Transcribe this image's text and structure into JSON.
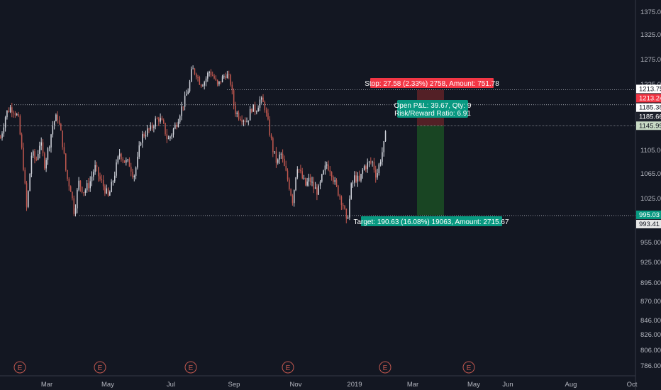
{
  "colors": {
    "background": "#131722",
    "up": "#d1d4dc",
    "down": "#c2584f",
    "axis_text": "#b2b5be",
    "stop_zone": "#5b2127",
    "target_zone": "#1b4a23",
    "stop_label": "#f23645",
    "target_label": "#089981",
    "info_label": "#089981",
    "current_price_bg": "#d1d4dc",
    "stop_price_bg": "#f23645",
    "target_price_bg": "#089981"
  },
  "chart_data": {
    "type": "candlestick",
    "title": "",
    "xlabel": "",
    "ylabel": "",
    "y_axis_ticks": [
      "1375.00",
      "1325.00",
      "1275.00",
      "1225.00",
      "1185.00",
      "1145.00",
      "1105.00",
      "1065.00",
      "1025.00",
      "995.00",
      "955.00",
      "925.00",
      "895.00",
      "870.00",
      "846.00",
      "826.00",
      "806.00",
      "786.00"
    ],
    "x_axis_ticks": [
      "Mar",
      "May",
      "Jul",
      "Sep",
      "Nov",
      "2019",
      "Mar",
      "May",
      "Jun",
      "Aug",
      "Oct"
    ],
    "price_labels": {
      "stop": "1213.75",
      "stop_alt": "1213.24",
      "info_line": "1185.38",
      "current": "1185.66",
      "entry": "1145.99",
      "target": "995.03",
      "target_alt": "993.41"
    },
    "position": {
      "entry": 1145.99,
      "stop": 1213.75,
      "target": 995.03,
      "stop_text": "Stop: 27.58 (2.33%) 2758, Amount: 751.78",
      "target_text": "Target: 190.63 (16.08%) 19063, Amount: 2715.67",
      "pnl_text": "Open P&L: 39.67, Qty: 9",
      "rr_text": "Risk/Reward Ratio: 6.91"
    },
    "earnings_markers": [
      "E",
      "E",
      "E",
      "E",
      "E",
      "E"
    ],
    "price_path": [
      [
        0,
        1125
      ],
      [
        3,
        1140
      ],
      [
        8,
        1170
      ],
      [
        14,
        1180
      ],
      [
        19,
        1175
      ],
      [
        25,
        1160
      ],
      [
        32,
        1080
      ],
      [
        37,
        1005
      ],
      [
        44,
        1100
      ],
      [
        50,
        1085
      ],
      [
        56,
        1120
      ],
      [
        62,
        1080
      ],
      [
        68,
        1110
      ],
      [
        74,
        1150
      ],
      [
        80,
        1165
      ],
      [
        87,
        1120
      ],
      [
        93,
        1060
      ],
      [
        99,
        1040
      ],
      [
        104,
        1000
      ],
      [
        110,
        1050
      ],
      [
        118,
        1035
      ],
      [
        126,
        1050
      ],
      [
        133,
        1075
      ],
      [
        140,
        1055
      ],
      [
        147,
        1040
      ],
      [
        152,
        1025
      ],
      [
        158,
        1050
      ],
      [
        163,
        1075
      ],
      [
        168,
        1100
      ],
      [
        175,
        1085
      ],
      [
        182,
        1080
      ],
      [
        188,
        1060
      ],
      [
        193,
        1085
      ],
      [
        198,
        1125
      ],
      [
        205,
        1135
      ],
      [
        212,
        1140
      ],
      [
        218,
        1155
      ],
      [
        224,
        1160
      ],
      [
        230,
        1145
      ],
      [
        236,
        1120
      ],
      [
        242,
        1135
      ],
      [
        248,
        1150
      ],
      [
        254,
        1175
      ],
      [
        260,
        1195
      ],
      [
        266,
        1220
      ],
      [
        270,
        1255
      ],
      [
        276,
        1245
      ],
      [
        282,
        1225
      ],
      [
        288,
        1230
      ],
      [
        294,
        1250
      ],
      [
        300,
        1240
      ],
      [
        306,
        1220
      ],
      [
        312,
        1235
      ],
      [
        318,
        1245
      ],
      [
        324,
        1230
      ],
      [
        330,
        1175
      ],
      [
        336,
        1165
      ],
      [
        342,
        1160
      ],
      [
        348,
        1155
      ],
      [
        354,
        1180
      ],
      [
        360,
        1175
      ],
      [
        366,
        1195
      ],
      [
        372,
        1185
      ],
      [
        378,
        1145
      ],
      [
        384,
        1105
      ],
      [
        390,
        1080
      ],
      [
        395,
        1100
      ],
      [
        400,
        1075
      ],
      [
        406,
        1050
      ],
      [
        412,
        1020
      ],
      [
        418,
        1080
      ],
      [
        424,
        1060
      ],
      [
        430,
        1045
      ],
      [
        436,
        1055
      ],
      [
        442,
        1040
      ],
      [
        448,
        1035
      ],
      [
        454,
        1060
      ],
      [
        460,
        1080
      ],
      [
        466,
        1070
      ],
      [
        472,
        1045
      ],
      [
        478,
        1030
      ],
      [
        484,
        1010
      ],
      [
        488,
        980
      ],
      [
        494,
        1040
      ],
      [
        500,
        1060
      ],
      [
        506,
        1050
      ],
      [
        512,
        1075
      ],
      [
        518,
        1080
      ],
      [
        524,
        1085
      ],
      [
        530,
        1060
      ],
      [
        536,
        1090
      ],
      [
        541,
        1115
      ],
      [
        545,
        1146
      ]
    ]
  }
}
